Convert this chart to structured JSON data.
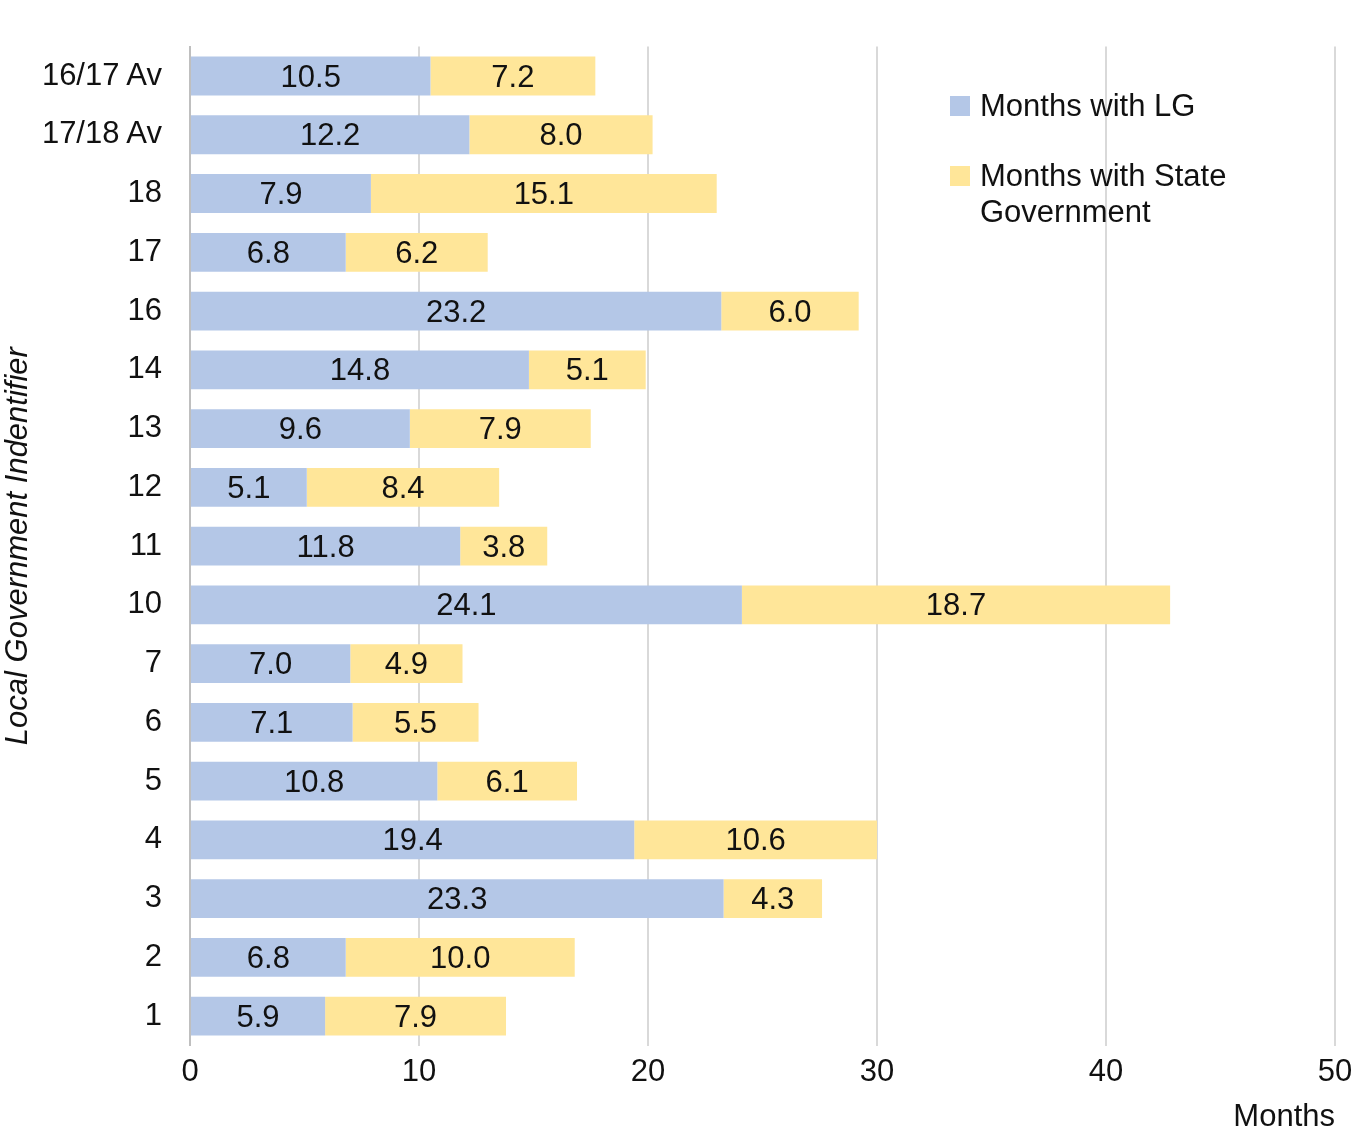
{
  "chart_data": {
    "type": "bar",
    "orientation": "horizontal",
    "stacked": true,
    "xlabel": "Months",
    "ylabel": "Local Government Indentifier",
    "categories": [
      "16/17 Av",
      "17/18 Av",
      "18",
      "17",
      "16",
      "14",
      "13",
      "12",
      "11",
      "10",
      "7",
      "6",
      "5",
      "4",
      "3",
      "2",
      "1"
    ],
    "series": [
      {
        "name": "Months with LG",
        "color": "#b4c7e7",
        "values": [
          10.5,
          12.2,
          7.9,
          6.8,
          23.2,
          14.8,
          9.6,
          5.1,
          11.8,
          24.1,
          7.0,
          7.1,
          10.8,
          19.4,
          23.3,
          6.8,
          5.9
        ],
        "value_labels": [
          "10.5",
          "12.2",
          "7.9",
          "6.8",
          "23.2",
          "14.8",
          "9.6",
          "5.1",
          "11.8",
          "24.1",
          "7.0",
          "7.1",
          "10.8",
          "19.4",
          "23.3",
          "6.8",
          "5.9"
        ]
      },
      {
        "name": "Months with State Government",
        "color": "#ffe699",
        "values": [
          7.2,
          8.0,
          15.1,
          6.2,
          6.0,
          5.1,
          7.9,
          8.4,
          3.8,
          18.7,
          4.9,
          5.5,
          6.1,
          10.6,
          4.3,
          10.0,
          7.9
        ],
        "value_labels": [
          "7.2",
          "8.0",
          "15.1",
          "6.2",
          "6.0",
          "5.1",
          "7.9",
          "8.4",
          "3.8",
          "18.7",
          "4.9",
          "5.5",
          "6.1",
          "10.6",
          "4.3",
          "10.0",
          "7.9"
        ]
      }
    ],
    "xlim": [
      0,
      50
    ],
    "xticks": [
      0,
      10,
      20,
      30,
      40,
      50
    ],
    "grid": "x",
    "legend": "top right"
  }
}
